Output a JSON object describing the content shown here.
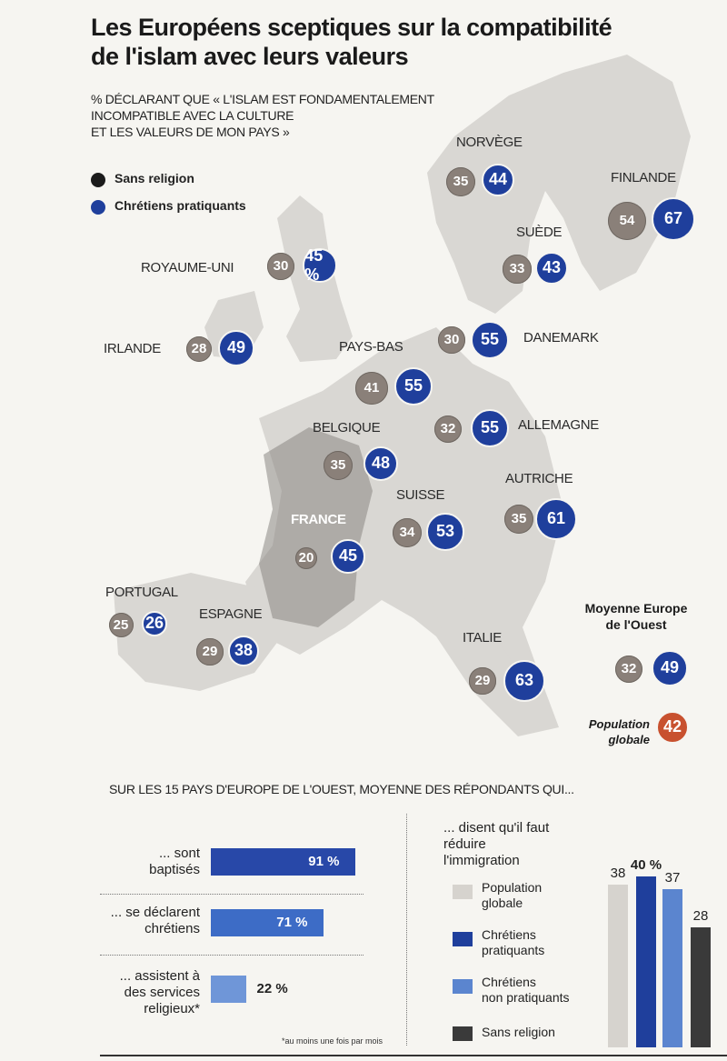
{
  "title_lines": [
    "Les Européens sceptiques sur la compatibilité",
    "de l'islam avec leurs valeurs"
  ],
  "subtitle_lines": [
    "% DÉCLARANT QUE « L'ISLAM EST FONDAMENTALEMENT",
    "INCOMPATIBLE AVEC LA CULTURE",
    "ET LES VALEURS DE MON PAYS »"
  ],
  "legend": [
    {
      "label": "Sans religion",
      "color": "#1b1b1b"
    },
    {
      "label": "Chrétiens pratiquants",
      "color": "#1f3f9c"
    }
  ],
  "colors": {
    "sans_religion_bubble": "#8a8079",
    "chretiens_pratiquants": "#1f3f9c",
    "population_globale_bubble": "#c8512f",
    "map_land": "#d9d7d3"
  },
  "chart_data": [
    {
      "type": "map-bubbles",
      "series_names": [
        "Sans religion",
        "Chrétiens pratiquants"
      ],
      "countries": [
        {
          "name": "NORVÈGE",
          "sans_religion": 35,
          "chretiens_pratiquants": 44,
          "blue_label": "44"
        },
        {
          "name": "FINLANDE",
          "sans_religion": 54,
          "chretiens_pratiquants": 67,
          "blue_label": "67"
        },
        {
          "name": "SUÈDE",
          "sans_religion": 33,
          "chretiens_pratiquants": 43,
          "blue_label": "43"
        },
        {
          "name": "ROYAUME-UNI",
          "sans_religion": 30,
          "chretiens_pratiquants": 45,
          "blue_label": "45 %"
        },
        {
          "name": "IRLANDE",
          "sans_religion": 28,
          "chretiens_pratiquants": 49,
          "blue_label": "49"
        },
        {
          "name": "PAYS-BAS",
          "sans_religion": 41,
          "chretiens_pratiquants": 55,
          "blue_label": "55"
        },
        {
          "name": "DANEMARK",
          "sans_religion": 30,
          "chretiens_pratiquants": 55,
          "blue_label": "55"
        },
        {
          "name": "ALLEMAGNE",
          "sans_religion": 32,
          "chretiens_pratiquants": 55,
          "blue_label": "55"
        },
        {
          "name": "BELGIQUE",
          "sans_religion": 35,
          "chretiens_pratiquants": 48,
          "blue_label": "48"
        },
        {
          "name": "AUTRICHE",
          "sans_religion": 35,
          "chretiens_pratiquants": 61,
          "blue_label": "61"
        },
        {
          "name": "SUISSE",
          "sans_religion": 34,
          "chretiens_pratiquants": 53,
          "blue_label": "53"
        },
        {
          "name": "FRANCE",
          "sans_religion": 20,
          "chretiens_pratiquants": 45,
          "blue_label": "45"
        },
        {
          "name": "PORTUGAL",
          "sans_religion": 25,
          "chretiens_pratiquants": 26,
          "blue_label": "26"
        },
        {
          "name": "ESPAGNE",
          "sans_religion": 29,
          "chretiens_pratiquants": 38,
          "blue_label": "38"
        },
        {
          "name": "ITALIE",
          "sans_religion": 29,
          "chretiens_pratiquants": 63,
          "blue_label": "63"
        }
      ],
      "average": {
        "title": "Moyenne Europe de l'Ouest",
        "title_lines": [
          "Moyenne Europe",
          "de l'Ouest"
        ],
        "sans_religion": 32,
        "chretiens_pratiquants": 49
      },
      "population_globale": {
        "label_lines": [
          "Population",
          "globale"
        ],
        "value": 42
      }
    },
    {
      "type": "bar",
      "orientation": "horizontal",
      "title": "SUR LES 15 PAYS D'EUROPE DE L'OUEST, MOYENNE DES RÉPONDANTS QUI...",
      "unit": "%",
      "bars": [
        {
          "label_lines": [
            "... sont",
            "baptisés"
          ],
          "value": 91,
          "value_label": "91 %",
          "color": "#2848a8"
        },
        {
          "label_lines": [
            "... se déclarent",
            "chrétiens"
          ],
          "value": 71,
          "value_label": "71 %",
          "color": "#3d6cc6"
        },
        {
          "label_lines": [
            "... assistent à",
            "des services",
            "religieux*"
          ],
          "value": 22,
          "value_label": "22 %",
          "color": "#6f96d8"
        }
      ],
      "footnote": "*au moins une fois par mois"
    },
    {
      "type": "bar",
      "orientation": "vertical",
      "title_lines": [
        "... disent qu'il faut réduire",
        "l'immigration"
      ],
      "unit": "%",
      "series": [
        {
          "name_lines": [
            "Population",
            "globale"
          ],
          "value": 38,
          "value_label": "38",
          "color": "#d6d3ce"
        },
        {
          "name_lines": [
            "Chrétiens",
            "pratiquants"
          ],
          "value": 40,
          "value_label": "40 %",
          "color": "#1f3f9c"
        },
        {
          "name_lines": [
            "Chrétiens",
            "non pratiquants"
          ],
          "value": 37,
          "value_label": "37",
          "color": "#5b85cf"
        },
        {
          "name_lines": [
            "Sans religion"
          ],
          "value": 28,
          "value_label": "28",
          "color": "#3a3a3a"
        }
      ]
    }
  ]
}
